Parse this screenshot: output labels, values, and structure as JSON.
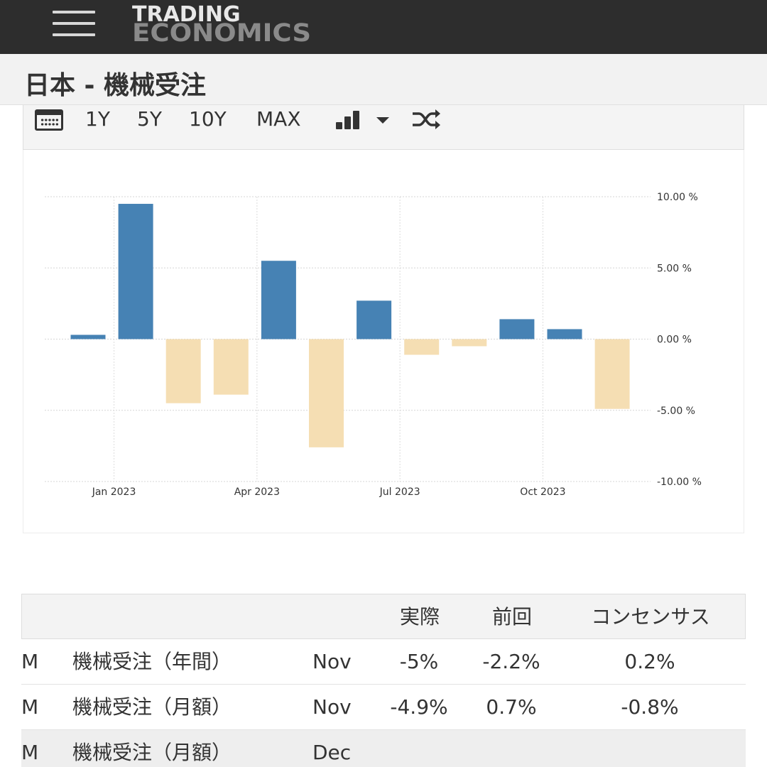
{
  "header": {
    "logo_line1": "TRADING",
    "logo_line2": "ECONOMICS",
    "page_title": "日本 - 機械受注"
  },
  "toolbar": {
    "ranges": [
      "1Y",
      "5Y",
      "10Y",
      "MAX"
    ],
    "icons": [
      "calendar-icon",
      "bar-chart-icon",
      "chevron-down-icon",
      "shuffle-icon"
    ]
  },
  "colors": {
    "positive": "#4682b4",
    "negative": "#f5deb3",
    "topbar": "#2d2d2d"
  },
  "chart_data": {
    "type": "bar",
    "x": [
      "2022-12",
      "2023-01",
      "2023-02",
      "2023-03",
      "2023-04",
      "2023-05",
      "2023-06",
      "2023-07",
      "2023-08",
      "2023-09",
      "2023-10",
      "2023-11"
    ],
    "values": [
      0.3,
      9.5,
      -4.5,
      -3.9,
      5.5,
      -7.6,
      2.7,
      -1.1,
      -0.5,
      1.4,
      0.7,
      -4.9
    ],
    "xticks": [
      "Jan 2023",
      "Apr 2023",
      "Jul 2023",
      "Oct 2023"
    ],
    "yticks": [
      "10.00 %",
      "5.00 %",
      "0.00 %",
      "-5.00 %",
      "-10.00 %"
    ],
    "ylim": [
      -10,
      10
    ],
    "y_axis_side": "right",
    "grid": true,
    "legend": "none"
  },
  "table": {
    "headers": [
      "",
      "",
      "",
      "実際",
      "前回",
      "コンセンサス"
    ],
    "rows": [
      {
        "flag": "M",
        "name": "機械受注（年間）",
        "period": "Nov",
        "actual": "-5%",
        "previous": "-2.2%",
        "consensus": "0.2%"
      },
      {
        "flag": "M",
        "name": "機械受注（月額）",
        "period": "Nov",
        "actual": "-4.9%",
        "previous": "0.7%",
        "consensus": "-0.8%"
      },
      {
        "flag": "M",
        "name": "機械受注（月額）",
        "period": "Dec",
        "actual": "",
        "previous": "",
        "consensus": ""
      }
    ]
  }
}
